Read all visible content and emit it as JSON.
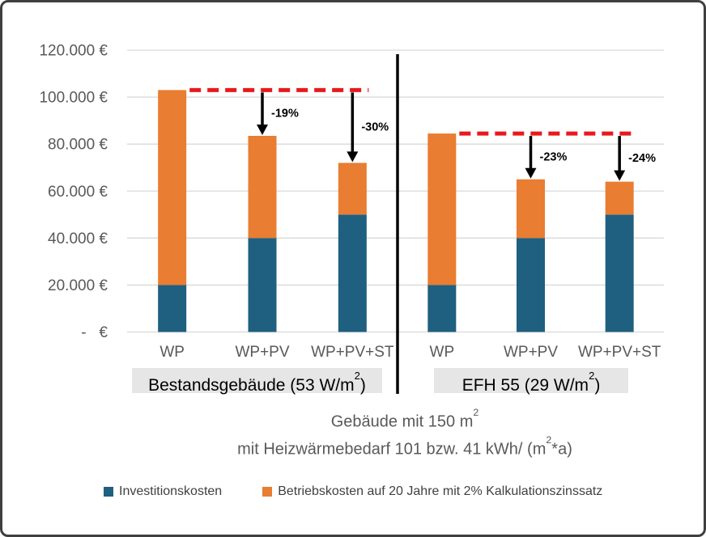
{
  "chart_data": {
    "type": "bar",
    "stacked": true,
    "currency_unit": "€",
    "ylim": [
      0,
      120000
    ],
    "ytick_step": 20000,
    "ytick_labels": [
      "-   €",
      "20.000 €",
      "40.000 €",
      "60.000 €",
      "80.000 €",
      "100.000 €",
      "120.000 €"
    ],
    "series_names": [
      "Investitionskosten",
      "Betriebskosten auf 20 Jahre mit 2% Kalkulationszinssatz"
    ],
    "grid": true,
    "groups": [
      {
        "label": "Bestandsgebäude (53 W/m²)",
        "label_parts": [
          "Bestandsgebäude (53 W/m",
          "2",
          ")"
        ],
        "categories": [
          "WP",
          "WP+PV",
          "WP+PV+ST"
        ],
        "investitionskosten": [
          20000,
          40000,
          50000
        ],
        "betriebskosten": [
          83000,
          43500,
          22000
        ],
        "totals": [
          103000,
          83500,
          72000
        ],
        "reference_line": 103000,
        "annotations": [
          {
            "category_index": 1,
            "label": "-19%"
          },
          {
            "category_index": 2,
            "label": "-30%"
          }
        ]
      },
      {
        "label": "EFH 55 (29 W/m²)",
        "label_parts": [
          "EFH 55 (29 W/m",
          "2",
          ")"
        ],
        "categories": [
          "WP",
          "WP+PV",
          "WP+PV+ST"
        ],
        "investitionskosten": [
          20000,
          40000,
          50000
        ],
        "betriebskosten": [
          64500,
          25000,
          14000
        ],
        "totals": [
          84500,
          65000,
          64000
        ],
        "reference_line": 84500,
        "annotations": [
          {
            "category_index": 1,
            "label": "-23%"
          },
          {
            "category_index": 2,
            "label": "-24%"
          }
        ]
      }
    ],
    "colors": {
      "investitionskosten": "#1f5f80",
      "betriebskosten": "#e97d31",
      "reference_line": "#e8191d",
      "gridline": "#d9d9d9",
      "axis_text": "#595959",
      "annotation": "#000000",
      "divider": "#000000",
      "group_label_bg": "#e7e6e6"
    }
  },
  "subtitle": {
    "line1": "Gebäude mit 150 m²",
    "line1_parts": [
      "Gebäude mit 150 m",
      "2"
    ],
    "line2": "mit Heizwärmebedarf 101 bzw. 41 kWh/ (m²*a)",
    "line2_parts": [
      "mit Heizwärmebedarf 101 bzw. 41 kWh/ (m",
      "2",
      "*a)"
    ]
  },
  "legend": {
    "items": [
      {
        "label": "Investitionskosten",
        "color": "#1f5f80"
      },
      {
        "label": "Betriebskosten auf 20 Jahre mit 2% Kalkulationszinssatz",
        "color": "#e97d31"
      }
    ]
  }
}
